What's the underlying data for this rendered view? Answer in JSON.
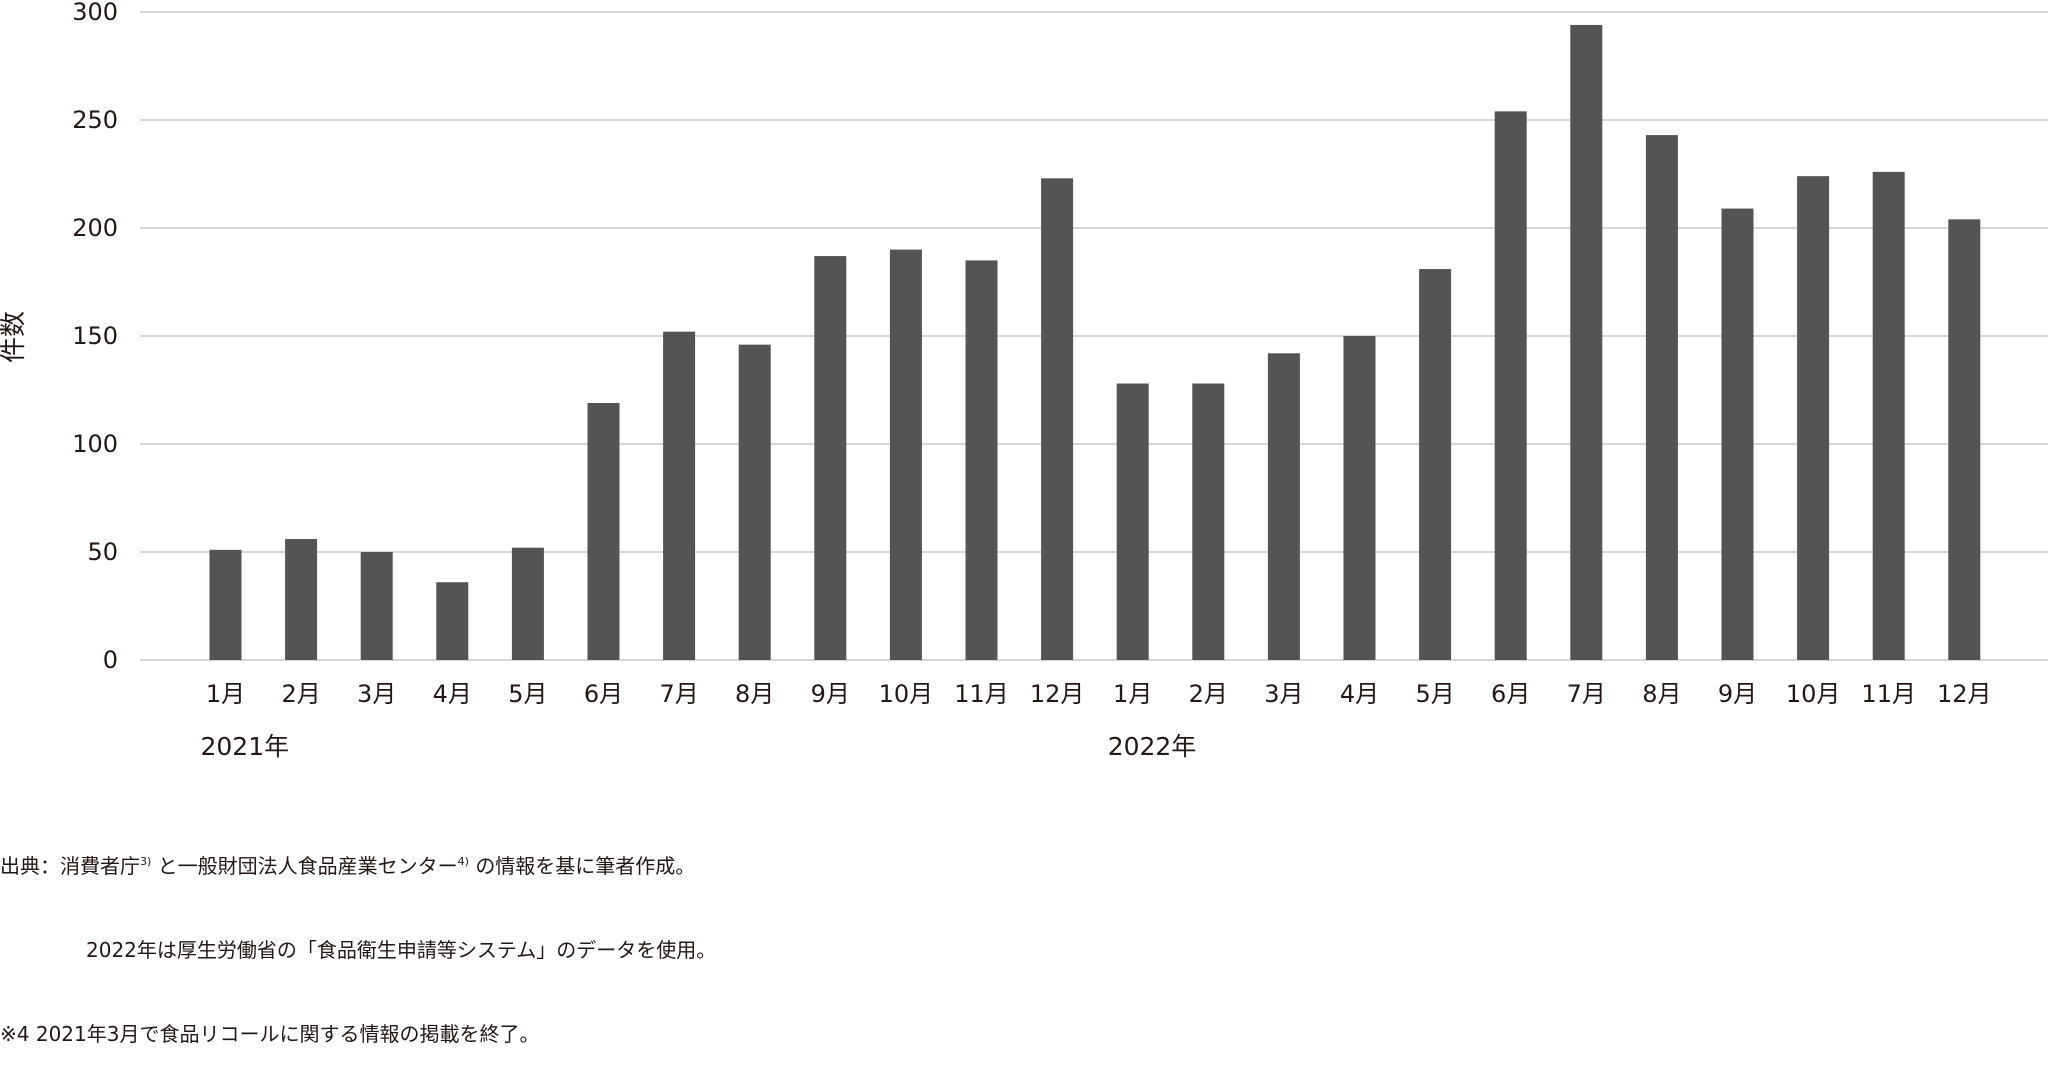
{
  "chart_data": {
    "type": "bar",
    "title": "",
    "ylabel": "件数",
    "xlabel": "",
    "ylim": [
      0,
      300
    ],
    "yticks": [
      0,
      50,
      100,
      150,
      200,
      250,
      300
    ],
    "grid": true,
    "bar_color": "#545453",
    "categories": [
      "1月",
      "2月",
      "3月",
      "4月",
      "5月",
      "6月",
      "7月",
      "8月",
      "9月",
      "10月",
      "11月",
      "12月",
      "1月",
      "2月",
      "3月",
      "4月",
      "5月",
      "6月",
      "7月",
      "8月",
      "9月",
      "10月",
      "11月",
      "12月"
    ],
    "year_groups": [
      {
        "label": "2021年",
        "start": 0,
        "end": 11
      },
      {
        "label": "2022年",
        "start": 12,
        "end": 23
      }
    ],
    "series": [
      {
        "values": [
          51,
          56,
          50,
          36,
          52,
          119,
          152,
          146,
          187,
          190,
          185,
          223,
          128,
          128,
          142,
          150,
          181,
          254,
          294,
          243,
          209,
          224,
          226,
          204
        ]
      }
    ]
  },
  "notes": {
    "source_prefix": "出典：消費者庁",
    "source_ref1": "3)",
    "source_mid": "と一般財団法人食品産業センター",
    "source_ref2": "4)",
    "source_suffix": "の情報を基に筆者作成。",
    "line2": "2022年は厚生労働省の「食品衛生申請等システム」のデータを使用。",
    "line3": "※4 2021年3月で食品リコールに関する情報の掲載を終了。"
  }
}
